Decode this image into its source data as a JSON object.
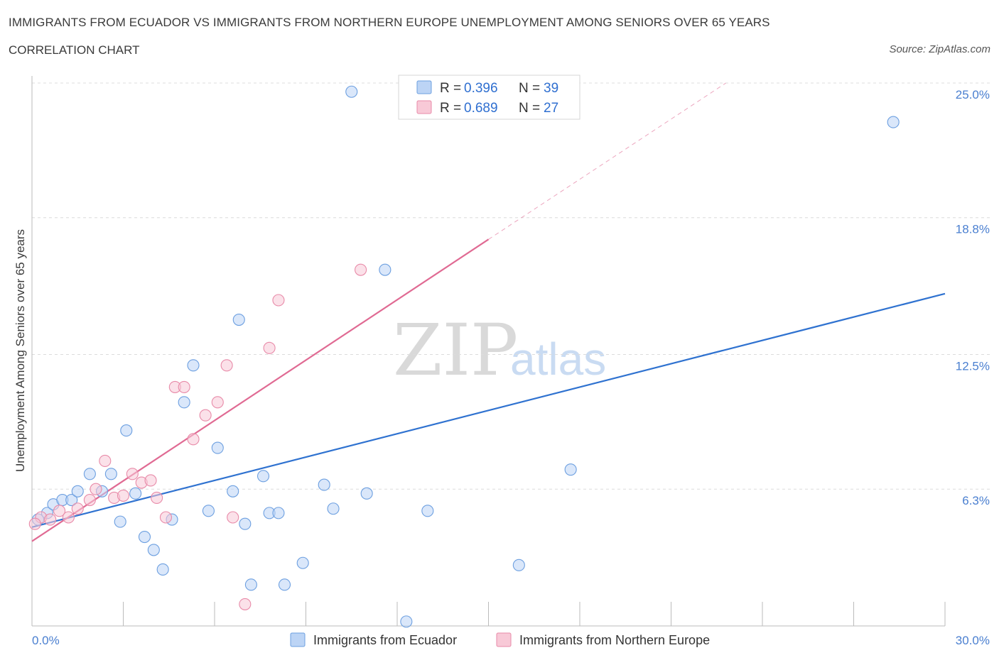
{
  "title": "IMMIGRANTS FROM ECUADOR VS IMMIGRANTS FROM NORTHERN EUROPE UNEMPLOYMENT AMONG SENIORS OVER 65 YEARS",
  "subtitle": "CORRELATION CHART",
  "source": "Source: ZipAtlas.com",
  "watermark": {
    "zip": "ZIP",
    "atlas": "atlas"
  },
  "colors": {
    "blue": "#6c9fe0",
    "blue_fill": "#bcd4f5",
    "blue_line": "#2f72d0",
    "pink": "#e88aa8",
    "pink_fill": "#f8c9d7",
    "pink_line": "#e06a93",
    "grid": "#dcdcdc",
    "tick_text": "#4a7fd0"
  },
  "legend": {
    "series": [
      {
        "r_label": "R = ",
        "r_value": "0.396",
        "n_label": "N = ",
        "n_value": "39"
      },
      {
        "r_label": "R = ",
        "r_value": "0.689",
        "n_label": "N = ",
        "n_value": "27"
      }
    ]
  },
  "chart_data": {
    "type": "scatter",
    "title": "IMMIGRANTS FROM ECUADOR VS IMMIGRANTS FROM NORTHERN EUROPE UNEMPLOYMENT AMONG SENIORS OVER 65 YEARS",
    "xlabel": "",
    "ylabel": "Unemployment Among Seniors over 65 years",
    "xlim": [
      0,
      30
    ],
    "ylim": [
      0,
      25
    ],
    "x_tick_labels": [
      "0.0%",
      "30.0%"
    ],
    "y_ticks": [
      {
        "value": 6.3,
        "label": "6.3%"
      },
      {
        "value": 12.5,
        "label": "12.5%"
      },
      {
        "value": 18.8,
        "label": "18.8%"
      },
      {
        "value": 25.0,
        "label": "25.0%"
      }
    ],
    "series": [
      {
        "name": "Immigrants from Ecuador",
        "color": "blue",
        "points": [
          [
            0.2,
            4.9
          ],
          [
            0.5,
            5.2
          ],
          [
            0.7,
            5.6
          ],
          [
            1.0,
            5.8
          ],
          [
            1.3,
            5.8
          ],
          [
            1.5,
            6.2
          ],
          [
            1.9,
            7.0
          ],
          [
            2.3,
            6.2
          ],
          [
            2.6,
            7.0
          ],
          [
            2.9,
            4.8
          ],
          [
            3.1,
            9.0
          ],
          [
            3.4,
            6.1
          ],
          [
            3.7,
            4.1
          ],
          [
            4.0,
            3.5
          ],
          [
            4.3,
            2.6
          ],
          [
            4.6,
            4.9
          ],
          [
            5.0,
            10.3
          ],
          [
            5.3,
            12.0
          ],
          [
            5.8,
            5.3
          ],
          [
            6.1,
            8.2
          ],
          [
            6.6,
            6.2
          ],
          [
            6.8,
            14.1
          ],
          [
            7.0,
            4.7
          ],
          [
            7.2,
            1.9
          ],
          [
            7.6,
            6.9
          ],
          [
            7.8,
            5.2
          ],
          [
            8.1,
            5.2
          ],
          [
            8.3,
            1.9
          ],
          [
            8.9,
            2.9
          ],
          [
            9.6,
            6.5
          ],
          [
            9.9,
            5.4
          ],
          [
            10.5,
            24.6
          ],
          [
            11.0,
            6.1
          ],
          [
            11.6,
            16.4
          ],
          [
            12.3,
            0.2
          ],
          [
            13.0,
            5.3
          ],
          [
            16.0,
            2.8
          ],
          [
            17.7,
            7.2
          ],
          [
            28.3,
            23.2
          ]
        ],
        "trend": {
          "x": [
            0,
            30
          ],
          "y": [
            4.55,
            15.3
          ]
        }
      },
      {
        "name": "Immigrants from Northern Europe",
        "color": "pink",
        "points": [
          [
            0.3,
            5.0
          ],
          [
            0.6,
            4.9
          ],
          [
            0.9,
            5.3
          ],
          [
            1.2,
            5.0
          ],
          [
            1.5,
            5.4
          ],
          [
            1.9,
            5.8
          ],
          [
            2.1,
            6.3
          ],
          [
            2.4,
            7.6
          ],
          [
            2.7,
            5.9
          ],
          [
            3.0,
            6.0
          ],
          [
            3.3,
            7.0
          ],
          [
            3.6,
            6.6
          ],
          [
            3.9,
            6.7
          ],
          [
            4.1,
            5.9
          ],
          [
            4.4,
            5.0
          ],
          [
            4.7,
            11.0
          ],
          [
            5.0,
            11.0
          ],
          [
            5.3,
            8.6
          ],
          [
            5.7,
            9.7
          ],
          [
            6.1,
            10.3
          ],
          [
            6.4,
            12.0
          ],
          [
            6.6,
            5.0
          ],
          [
            7.0,
            1.0
          ],
          [
            7.8,
            12.8
          ],
          [
            8.1,
            15.0
          ],
          [
            10.8,
            16.4
          ],
          [
            0.1,
            4.7
          ]
        ],
        "trend": {
          "x": [
            0,
            15
          ],
          "y": [
            3.9,
            17.8
          ]
        },
        "trend_extension": {
          "x": [
            15,
            22.8
          ],
          "y": [
            17.8,
            25.0
          ]
        }
      }
    ]
  },
  "bottom_legend": {
    "items": [
      "Immigrants from Ecuador",
      "Immigrants from Northern Europe"
    ]
  }
}
